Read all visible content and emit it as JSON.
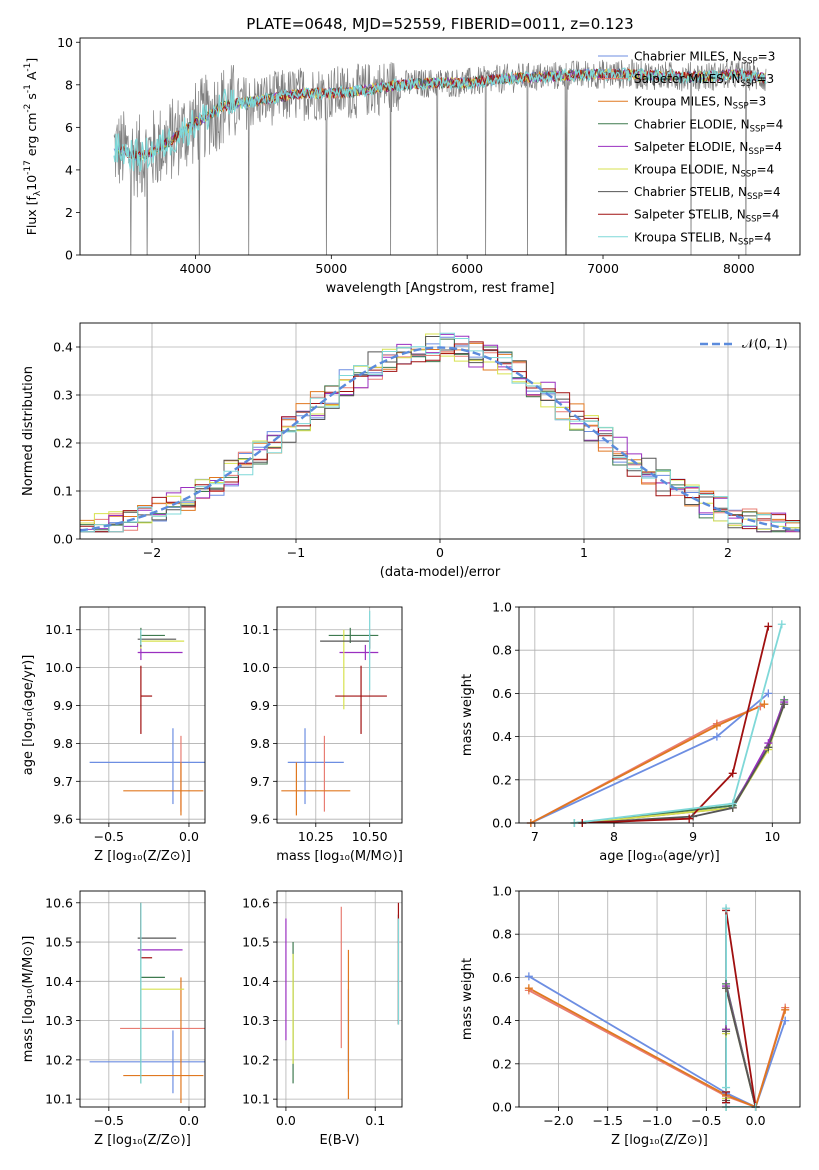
{
  "figure": {
    "title": "PLATE=0648, MJD=52559, FIBERID=0011, z=0.123"
  },
  "models": [
    {
      "name": "Chabrier MILES",
      "nssp": "3",
      "color": "#6d8ee2"
    },
    {
      "name": "Salpeter MILES",
      "nssp": "3",
      "color": "#e87d73"
    },
    {
      "name": "Kroupa MILES",
      "nssp": "3",
      "color": "#e07820"
    },
    {
      "name": "Chabrier ELODIE",
      "nssp": "4",
      "color": "#3e7a4f"
    },
    {
      "name": "Salpeter ELODIE",
      "nssp": "4",
      "color": "#9a2fc0"
    },
    {
      "name": "Kroupa ELODIE",
      "nssp": "4",
      "color": "#d7e24f"
    },
    {
      "name": "Chabrier STELIB",
      "nssp": "4",
      "color": "#555555"
    },
    {
      "name": "Salpeter STELIB",
      "nssp": "4",
      "color": "#a01010"
    },
    {
      "name": "Kroupa STELIB",
      "nssp": "4",
      "color": "#7fd8d8"
    }
  ],
  "chart_data": [
    {
      "id": "spectrum",
      "type": "line",
      "xlabel": "wavelength [Angstrom, rest frame]",
      "ylabel_parts": [
        "Flux [f",
        "λ",
        "10",
        "-17",
        " erg cm",
        "-2",
        " s",
        "-1",
        " A",
        "-1",
        "]"
      ],
      "xlim": [
        3150,
        8450
      ],
      "ylim": [
        0,
        10.2
      ],
      "xticks": [
        4000,
        5000,
        6000,
        7000,
        8000
      ],
      "yticks": [
        0,
        2,
        4,
        6,
        8,
        10
      ],
      "continuum": {
        "x": [
          3400,
          3600,
          3800,
          4000,
          4200,
          4500,
          4800,
          5000,
          5200,
          5500,
          5800,
          6000,
          6300,
          6600,
          6900,
          7200,
          7500,
          7800,
          8000,
          8200
        ],
        "y": [
          5.0,
          4.6,
          5.3,
          6.2,
          7.0,
          7.3,
          7.6,
          7.6,
          7.7,
          8.0,
          8.1,
          8.1,
          8.3,
          8.4,
          8.5,
          8.5,
          8.4,
          8.4,
          8.5,
          8.3
        ]
      },
      "data_color": "#7f7f7f"
    },
    {
      "id": "residuals",
      "type": "histogram",
      "xlabel": "(data-model)/error",
      "ylabel": "Normed distribution",
      "xlim": [
        -2.5,
        2.5
      ],
      "ylim": [
        0,
        0.45
      ],
      "xticks": [
        -2,
        -1,
        0,
        1,
        2
      ],
      "yticks": [
        0.0,
        0.1,
        0.2,
        0.3,
        0.4
      ],
      "bin_width": 0.1,
      "reference_label": "𝒩(0, 1)",
      "reference_color": "#5b8bdc"
    },
    {
      "id": "age_vs_Z",
      "type": "scatter",
      "xlabel": "Z [log₁₀(Z/Z⊙)]",
      "ylabel": "age  [log₁₀(age/yr)]",
      "xlim": [
        -0.68,
        0.1
      ],
      "ylim": [
        9.59,
        10.16
      ],
      "xticks": [
        -0.5,
        0.0
      ],
      "yticks": [
        9.6,
        9.7,
        9.8,
        9.9,
        10.0,
        10.1
      ],
      "points": [
        {
          "m": 0,
          "x": -0.1,
          "xerr": [
            0.52,
            0.2
          ],
          "y": 9.75,
          "yerr": [
            0.11,
            0.09
          ]
        },
        {
          "m": 1,
          "x": -0.05,
          "xerr": [
            0.0,
            0.0
          ],
          "y": 9.72,
          "yerr": [
            0.1,
            0.1
          ]
        },
        {
          "m": 2,
          "x": -0.05,
          "xerr": [
            0.36,
            0.14
          ],
          "y": 9.675,
          "yerr": [
            0.065,
            0.075
          ]
        },
        {
          "m": 3,
          "x": -0.3,
          "xerr": [
            0.0,
            0.15
          ],
          "y": 10.085,
          "yerr": [
            0.02,
            0.02
          ]
        },
        {
          "m": 4,
          "x": -0.3,
          "xerr": [
            0.02,
            0.26
          ],
          "y": 10.04,
          "yerr": [
            0.02,
            0.02
          ]
        },
        {
          "m": 5,
          "x": -0.3,
          "xerr": [
            0.0,
            0.27
          ],
          "y": 10.07,
          "yerr": [
            0.02,
            0.02
          ]
        },
        {
          "m": 6,
          "x": -0.3,
          "xerr": [
            0.02,
            0.22
          ],
          "y": 10.075,
          "yerr": [
            0.02,
            0.02
          ]
        },
        {
          "m": 7,
          "x": -0.3,
          "xerr": [
            0.0,
            0.07
          ],
          "y": 9.925,
          "yerr": [
            0.1,
            0.08
          ]
        },
        {
          "m": 8,
          "x": -0.3,
          "xerr": [
            0.0,
            0.0
          ],
          "y": 10.08,
          "yerr": [
            0.02,
            0.02
          ]
        }
      ]
    },
    {
      "id": "age_vs_mass",
      "type": "scatter",
      "xlabel": "mass [log₁₀(M/M⊙)]",
      "ylabel": "",
      "xlim": [
        10.07,
        10.65
      ],
      "ylim": [
        9.59,
        10.16
      ],
      "xticks": [
        10.25,
        10.5
      ],
      "yticks": [
        9.6,
        9.7,
        9.8,
        9.9,
        10.0,
        10.1
      ],
      "points": [
        {
          "m": 0,
          "x": 10.2,
          "xerr": [
            0.08,
            0.18
          ],
          "y": 9.75,
          "yerr": [
            0.11,
            0.09
          ]
        },
        {
          "m": 1,
          "x": 10.29,
          "xerr": [
            0.0,
            0.0
          ],
          "y": 9.72,
          "yerr": [
            0.1,
            0.1
          ]
        },
        {
          "m": 2,
          "x": 10.16,
          "xerr": [
            0.07,
            0.25
          ],
          "y": 9.675,
          "yerr": [
            0.065,
            0.075
          ]
        },
        {
          "m": 3,
          "x": 10.41,
          "xerr": [
            0.1,
            0.13
          ],
          "y": 10.085,
          "yerr": [
            0.02,
            0.02
          ]
        },
        {
          "m": 4,
          "x": 10.48,
          "xerr": [
            0.12,
            0.06
          ],
          "y": 10.04,
          "yerr": [
            0.02,
            0.02
          ]
        },
        {
          "m": 5,
          "x": 10.38,
          "xerr": [
            0.0,
            0.0
          ],
          "y": 10.0,
          "yerr": [
            0.11,
            0.1
          ]
        },
        {
          "m": 6,
          "x": 10.5,
          "xerr": [
            0.23,
            0.0
          ],
          "y": 10.07,
          "yerr": [
            0.02,
            0.02
          ]
        },
        {
          "m": 7,
          "x": 10.46,
          "xerr": [
            0.12,
            0.12
          ],
          "y": 9.925,
          "yerr": [
            0.1,
            0.08
          ]
        },
        {
          "m": 8,
          "x": 10.5,
          "xerr": [
            0.0,
            0.0
          ],
          "y": 10.06,
          "yerr": [
            0.12,
            0.09
          ]
        }
      ]
    },
    {
      "id": "weight_vs_age",
      "type": "line",
      "xlabel": "age  [log₁₀(age/yr)]",
      "ylabel": "mass weight",
      "xlim": [
        6.8,
        10.35
      ],
      "ylim": [
        0,
        1.0
      ],
      "xticks": [
        7,
        8,
        9,
        10
      ],
      "yticks": [
        0.0,
        0.2,
        0.4,
        0.6,
        0.8,
        1.0
      ],
      "series": [
        {
          "m": 0,
          "x": [
            6.95,
            9.3,
            9.95
          ],
          "y": [
            0.0,
            0.4,
            0.6
          ]
        },
        {
          "m": 1,
          "x": [
            6.95,
            9.3,
            9.85
          ],
          "y": [
            0.0,
            0.46,
            0.54
          ]
        },
        {
          "m": 2,
          "x": [
            6.95,
            9.3,
            9.9
          ],
          "y": [
            0.0,
            0.45,
            0.55
          ]
        },
        {
          "m": 3,
          "x": [
            7.5,
            9.5,
            9.95,
            10.15
          ],
          "y": [
            0.0,
            0.08,
            0.35,
            0.57
          ]
        },
        {
          "m": 4,
          "x": [
            7.6,
            9.5,
            9.95,
            10.15
          ],
          "y": [
            0.0,
            0.07,
            0.37,
            0.56
          ]
        },
        {
          "m": 5,
          "x": [
            7.6,
            9.5,
            9.95,
            10.15
          ],
          "y": [
            0.0,
            0.07,
            0.34,
            0.55
          ]
        },
        {
          "m": 6,
          "x": [
            7.6,
            9.0,
            9.5,
            9.95,
            10.15
          ],
          "y": [
            0.0,
            0.03,
            0.07,
            0.35,
            0.55
          ]
        },
        {
          "m": 7,
          "x": [
            7.6,
            8.95,
            9.5,
            9.95
          ],
          "y": [
            0.0,
            0.02,
            0.23,
            0.91
          ]
        },
        {
          "m": 8,
          "x": [
            7.5,
            9.5,
            10.12
          ],
          "y": [
            0.0,
            0.09,
            0.92
          ]
        }
      ]
    },
    {
      "id": "mass_vs_Z",
      "type": "scatter",
      "xlabel": "Z [log₁₀(Z/Z⊙)]",
      "ylabel": "mass [log₁₀(M/M⊙)]",
      "xlim": [
        -0.68,
        0.1
      ],
      "ylim": [
        10.08,
        10.63
      ],
      "xticks": [
        -0.5,
        0.0
      ],
      "yticks": [
        10.1,
        10.2,
        10.3,
        10.4,
        10.5,
        10.6
      ],
      "points": [
        {
          "m": 0,
          "x": -0.1,
          "xerr": [
            0.52,
            0.2
          ],
          "y": 10.195,
          "yerr": [
            0.08,
            0.08
          ]
        },
        {
          "m": 1,
          "x": -0.05,
          "xerr": [
            0.38,
            0.16
          ],
          "y": 10.28,
          "yerr": [
            0.0,
            0.0
          ]
        },
        {
          "m": 2,
          "x": -0.05,
          "xerr": [
            0.36,
            0.14
          ],
          "y": 10.16,
          "yerr": [
            0.07,
            0.25
          ]
        },
        {
          "m": 3,
          "x": -0.3,
          "xerr": [
            0.0,
            0.15
          ],
          "y": 10.41,
          "yerr": [
            0.27,
            0.19
          ]
        },
        {
          "m": 4,
          "x": -0.3,
          "xerr": [
            0.02,
            0.26
          ],
          "y": 10.48,
          "yerr": [
            0.0,
            0.0
          ]
        },
        {
          "m": 5,
          "x": -0.3,
          "xerr": [
            0.0,
            0.27
          ],
          "y": 10.38,
          "yerr": [
            0.0,
            0.0
          ]
        },
        {
          "m": 6,
          "x": -0.3,
          "xerr": [
            0.02,
            0.22
          ],
          "y": 10.51,
          "yerr": [
            0.0,
            0.0
          ]
        },
        {
          "m": 7,
          "x": -0.3,
          "xerr": [
            0.0,
            0.07
          ],
          "y": 10.46,
          "yerr": [
            0.0,
            0.14
          ]
        },
        {
          "m": 8,
          "x": -0.3,
          "xerr": [
            0.0,
            0.0
          ],
          "y": 10.4,
          "yerr": [
            0.26,
            0.2
          ]
        }
      ]
    },
    {
      "id": "mass_vs_ebv",
      "type": "scatter",
      "xlabel": "E(B-V)",
      "ylabel": "",
      "xlim": [
        -0.01,
        0.13
      ],
      "ylim": [
        10.08,
        10.63
      ],
      "xticks": [
        0.0,
        0.1
      ],
      "yticks": [
        10.1,
        10.2,
        10.3,
        10.4,
        10.5,
        10.6
      ],
      "points": [
        {
          "m": 0,
          "x": 0.07,
          "xerr": [
            0.0,
            0.0
          ],
          "y": 10.23,
          "yerr": [
            0.06,
            0.15
          ]
        },
        {
          "m": 1,
          "x": 0.062,
          "xerr": [
            0.0,
            0.0
          ],
          "y": 10.35,
          "yerr": [
            0.12,
            0.24
          ]
        },
        {
          "m": 2,
          "x": 0.07,
          "xerr": [
            0.0,
            0.0
          ],
          "y": 10.24,
          "yerr": [
            0.14,
            0.24
          ]
        },
        {
          "m": 3,
          "x": 0.008,
          "xerr": [
            0.0,
            0.0
          ],
          "y": 10.3,
          "yerr": [
            0.16,
            0.2
          ]
        },
        {
          "m": 4,
          "x": 0.0,
          "xerr": [
            0.0,
            0.0
          ],
          "y": 10.41,
          "yerr": [
            0.16,
            0.15
          ]
        },
        {
          "m": 5,
          "x": 0.008,
          "xerr": [
            0.0,
            0.0
          ],
          "y": 10.35,
          "yerr": [
            0.16,
            0.12
          ]
        },
        {
          "m": 6,
          "x": 0.126,
          "xerr": [
            0.0,
            0.0
          ],
          "y": 10.45,
          "yerr": [
            0.16,
            0.12
          ]
        },
        {
          "m": 7,
          "x": 0.126,
          "xerr": [
            0.0,
            0.0
          ],
          "y": 10.45,
          "yerr": [
            0.16,
            0.15
          ]
        },
        {
          "m": 8,
          "x": 0.126,
          "xerr": [
            0.0,
            0.0
          ],
          "y": 10.42,
          "yerr": [
            0.13,
            0.14
          ]
        }
      ]
    },
    {
      "id": "weight_vs_Z",
      "type": "line",
      "xlabel": "Z [log₁₀(Z/Z⊙)]",
      "ylabel": "mass weight",
      "xlim": [
        -2.4,
        0.45
      ],
      "ylim": [
        0,
        1.0
      ],
      "xticks": [
        -2.0,
        -1.5,
        -1.0,
        -0.5,
        0.0
      ],
      "yticks": [
        0.0,
        0.2,
        0.4,
        0.6,
        0.8,
        1.0
      ],
      "series": [
        {
          "m": 0,
          "x": [
            -2.3,
            -0.3,
            0.0,
            0.3
          ],
          "y": [
            0.605,
            0.065,
            0.0,
            0.4
          ]
        },
        {
          "m": 1,
          "x": [
            -2.3,
            -0.3,
            0.0,
            0.3
          ],
          "y": [
            0.54,
            0.05,
            0.0,
            0.46
          ]
        },
        {
          "m": 2,
          "x": [
            -2.3,
            -0.3,
            0.0,
            0.3
          ],
          "y": [
            0.55,
            0.055,
            0.0,
            0.45
          ]
        },
        {
          "m": 3,
          "x": [
            -0.3,
            -0.3,
            -0.3,
            0.0
          ],
          "y": [
            0.0,
            0.35,
            0.57,
            0.0
          ]
        },
        {
          "m": 4,
          "x": [
            -0.3,
            -0.3,
            -0.3,
            0.0
          ],
          "y": [
            0.02,
            0.36,
            0.56,
            0.0
          ]
        },
        {
          "m": 5,
          "x": [
            -0.3,
            -0.3,
            -0.3,
            0.0
          ],
          "y": [
            0.04,
            0.34,
            0.55,
            0.0
          ]
        },
        {
          "m": 6,
          "x": [
            -0.3,
            -0.3,
            -0.3,
            0.0
          ],
          "y": [
            0.03,
            0.35,
            0.55,
            0.0
          ]
        },
        {
          "m": 7,
          "x": [
            -0.3,
            -0.3,
            -0.3,
            0.0
          ],
          "y": [
            0.02,
            0.07,
            0.91,
            0.0
          ]
        },
        {
          "m": 8,
          "x": [
            -0.3,
            -0.3,
            -0.3,
            0.0
          ],
          "y": [
            0.09,
            0.92,
            0.0,
            0.0
          ]
        }
      ]
    }
  ]
}
